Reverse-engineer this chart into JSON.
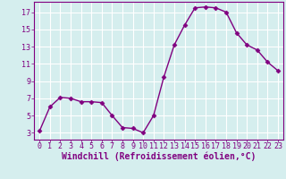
{
  "x": [
    0,
    1,
    2,
    3,
    4,
    5,
    6,
    7,
    8,
    9,
    10,
    11,
    12,
    13,
    14,
    15,
    16,
    17,
    18,
    19,
    20,
    21,
    22,
    23
  ],
  "y": [
    3.2,
    6.0,
    7.1,
    7.0,
    6.6,
    6.6,
    6.5,
    5.0,
    3.6,
    3.5,
    3.0,
    5.0,
    9.5,
    13.2,
    15.5,
    17.5,
    17.6,
    17.5,
    17.0,
    14.6,
    13.2,
    12.6,
    11.2,
    10.2
  ],
  "line_color": "#800080",
  "marker": "D",
  "marker_size": 2.5,
  "line_width": 1.0,
  "bg_color": "#d5eeee",
  "grid_color": "#b0d8d8",
  "xlabel": "Windchill (Refroidissement éolien,°C)",
  "xlabel_color": "#800080",
  "xlabel_fontsize": 7,
  "tick_color": "#800080",
  "tick_fontsize": 6,
  "yticks": [
    3,
    5,
    7,
    9,
    11,
    13,
    15,
    17
  ],
  "xticks": [
    0,
    1,
    2,
    3,
    4,
    5,
    6,
    7,
    8,
    9,
    10,
    11,
    12,
    13,
    14,
    15,
    16,
    17,
    18,
    19,
    20,
    21,
    22,
    23
  ],
  "ylim": [
    2.2,
    18.2
  ],
  "xlim": [
    -0.5,
    23.5
  ],
  "spine_color": "#800080"
}
